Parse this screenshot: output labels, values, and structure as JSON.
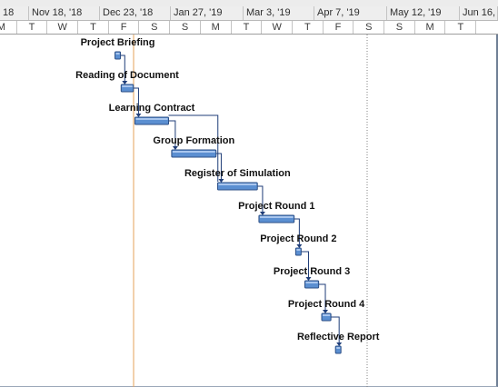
{
  "timescale": {
    "top_tier": [
      {
        "label": "18"
      },
      {
        "label": "Nov 18, '18"
      },
      {
        "label": "Dec 23, '18"
      },
      {
        "label": "Jan 27, '19"
      },
      {
        "label": "Mar 3, '19"
      },
      {
        "label": "Apr 7, '19"
      },
      {
        "label": "May 12, '19"
      },
      {
        "label": "Jun 16,"
      }
    ],
    "bottom_tier": [
      "M",
      "T",
      "W",
      "T",
      "F",
      "S",
      "S",
      "M",
      "T",
      "W",
      "T",
      "F",
      "S",
      "S",
      "M",
      "T"
    ]
  },
  "tasks": [
    {
      "name": "Project Briefing",
      "start_col": 4.2,
      "end_col": 4.35
    },
    {
      "name": "Reading of Document",
      "start_col": 4.4,
      "end_col": 4.8
    },
    {
      "name": "Learning Contract",
      "start_col": 4.85,
      "end_col": 5.95
    },
    {
      "name": "Group Formation",
      "start_col": 6.05,
      "end_col": 7.5
    },
    {
      "name": "Register of Simulation",
      "start_col": 7.55,
      "end_col": 8.85
    },
    {
      "name": "Project Round 1",
      "start_col": 8.9,
      "end_col": 10.05
    },
    {
      "name": "Project Round 2",
      "start_col": 10.1,
      "end_col": 10.25
    },
    {
      "name": "Project Round 3",
      "start_col": 10.4,
      "end_col": 10.85
    },
    {
      "name": "Project Round 4",
      "start_col": 10.95,
      "end_col": 11.25
    },
    {
      "name": "Reflective Report",
      "start_col": 11.4,
      "end_col": 11.55
    }
  ],
  "colors": {
    "bar_fill": "#5b8fd1",
    "bar_stroke": "#2c4f86",
    "link": "#1f3d78",
    "today_line": "#e5a35a",
    "deadline_line": "#808080"
  }
}
